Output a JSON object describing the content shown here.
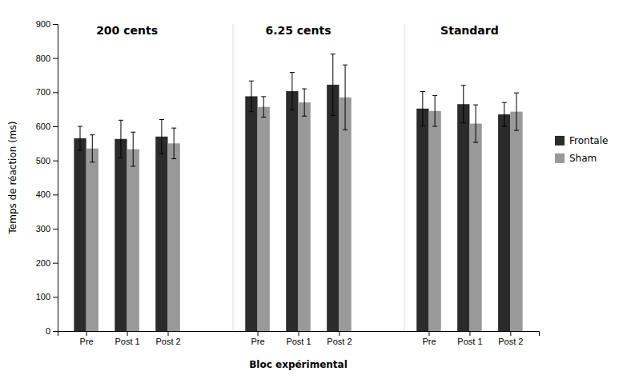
{
  "chart_data": {
    "type": "bar",
    "categories": [
      "Pre",
      "Post 1",
      "Post 2",
      "Pre",
      "Post 1",
      "Post 2",
      "Pre",
      "Post 1",
      "Post 2"
    ],
    "series": [
      {
        "name": "Frontale",
        "color": "#2b2b2b",
        "values": [
          565,
          563,
          570,
          688,
          703,
          722,
          652,
          665,
          635
        ],
        "errors": [
          35,
          55,
          50,
          45,
          55,
          90,
          50,
          55,
          35
        ]
      },
      {
        "name": "Sham",
        "color": "#999999",
        "values": [
          535,
          533,
          550,
          657,
          670,
          685,
          645,
          608,
          643
        ],
        "errors": [
          40,
          50,
          45,
          30,
          40,
          95,
          45,
          55,
          55
        ]
      }
    ],
    "x_label": "Bloc expérimental",
    "y_label": "Temps de réaction (ms)",
    "ylim": [
      0,
      900
    ],
    "yticks": [
      0,
      100,
      200,
      300,
      400,
      500,
      600,
      700,
      800,
      900
    ],
    "annotations": [
      {
        "text": "200 cents",
        "y": 870
      },
      {
        "text": "6.25 cents",
        "y": 870
      },
      {
        "text": "Standard",
        "y": 870
      }
    ],
    "grid": false,
    "legend": "right"
  }
}
